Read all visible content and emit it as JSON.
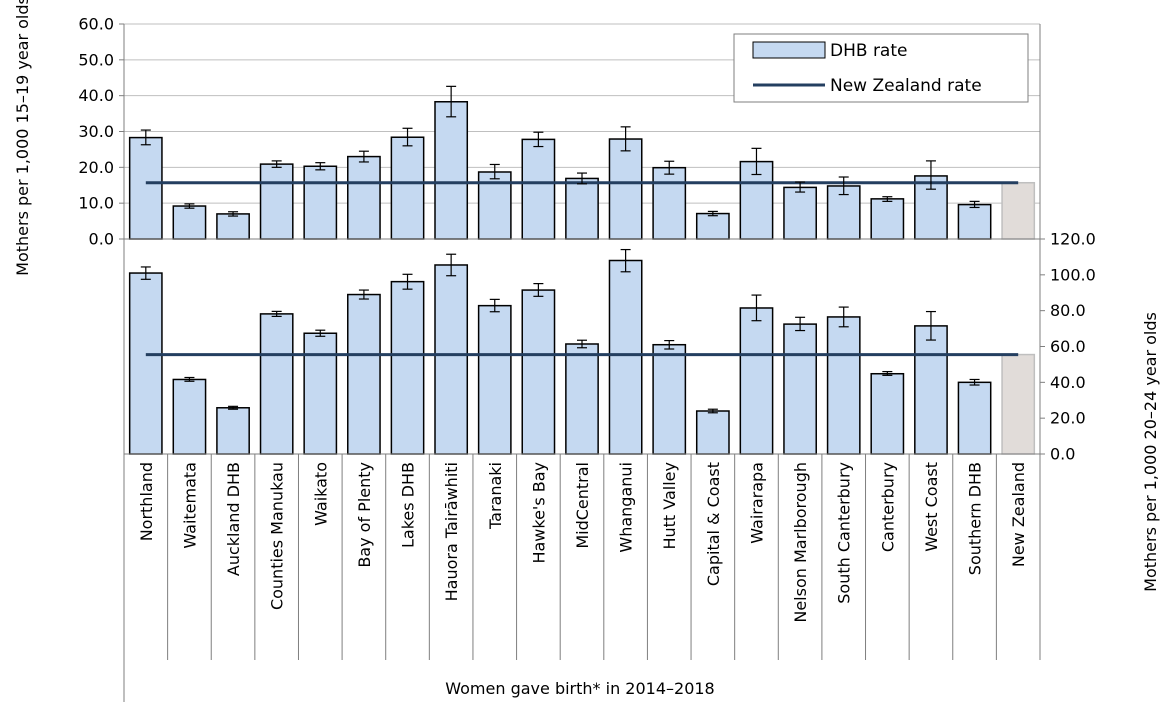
{
  "chart_data": {
    "type": "bar",
    "xlabel": "Women gave birth* in 2014–2018",
    "legend": {
      "position": "top-right",
      "entries": [
        "DHB rate",
        "New Zealand rate"
      ]
    },
    "categories": [
      "Northland",
      "Waitemata",
      "Auckland DHB",
      "Counties Manukau",
      "Waikato",
      "Bay of Plenty",
      "Lakes DHB",
      "Hauora Tairāwhiti",
      "Taranaki",
      "Hawke's Bay",
      "MidCentral",
      "Whanganui",
      "Hutt Valley",
      "Capital & Coast",
      "Wairarapa",
      "Nelson Marlborough",
      "South Canterbury",
      "Canterbury",
      "West Coast",
      "Southern DHB",
      "New Zealand"
    ],
    "colors": {
      "dhb_bar": "#c5d9f1",
      "nz_bar": "#e1dcd9",
      "bar_border": "#000000",
      "nz_line": "#243f60",
      "error_bar": "#000000",
      "grid": "#bfbfbf"
    },
    "panels": [
      {
        "id": "top",
        "ylabel": "Mothers per 1,000 15–19 year olds",
        "ylim": [
          0,
          60
        ],
        "yticks": [
          "0.0",
          "10.0",
          "20.0",
          "30.0",
          "40.0",
          "50.0",
          "60.0"
        ],
        "axis_side": "left",
        "nz_rate": 15.7,
        "values": [
          28.3,
          9.2,
          7.0,
          20.9,
          20.3,
          23.0,
          28.4,
          38.3,
          18.7,
          27.8,
          16.9,
          27.9,
          19.9,
          7.1,
          21.6,
          14.4,
          14.8,
          11.2,
          17.6,
          9.6,
          15.7
        ],
        "errors_low": [
          26.3,
          8.6,
          6.4,
          20.0,
          19.3,
          21.5,
          26.0,
          34.1,
          16.8,
          25.8,
          15.4,
          24.6,
          18.1,
          6.5,
          18.0,
          13.1,
          12.4,
          10.5,
          13.9,
          8.8,
          null
        ],
        "errors_high": [
          30.4,
          9.8,
          7.6,
          21.8,
          21.3,
          24.5,
          30.9,
          42.6,
          20.8,
          29.8,
          18.4,
          31.3,
          21.7,
          7.7,
          25.3,
          15.9,
          17.3,
          11.8,
          21.8,
          10.5,
          null
        ]
      },
      {
        "id": "bottom",
        "ylabel": "Mothers per 1,000 20–24 year olds",
        "ylim": [
          0,
          120
        ],
        "yticks": [
          "0.0",
          "20.0",
          "40.0",
          "60.0",
          "80.0",
          "100.0",
          "120.0"
        ],
        "axis_side": "right",
        "nz_rate": 55.5,
        "values": [
          101.0,
          41.6,
          25.8,
          78.2,
          67.4,
          89.0,
          96.2,
          105.5,
          82.8,
          91.5,
          61.4,
          108.0,
          61.0,
          24.0,
          81.5,
          72.5,
          76.5,
          44.8,
          71.5,
          40.0,
          55.5
        ],
        "errors_low": [
          97.5,
          40.6,
          25.0,
          76.8,
          65.7,
          86.5,
          92.0,
          99.5,
          79.4,
          88.0,
          59.3,
          101.7,
          58.6,
          23.0,
          74.4,
          68.9,
          71.0,
          43.9,
          63.6,
          38.5,
          null
        ],
        "errors_high": [
          104.4,
          42.7,
          26.6,
          79.6,
          69.1,
          91.5,
          100.3,
          111.5,
          86.3,
          95.1,
          63.5,
          114.1,
          63.3,
          25.0,
          88.7,
          76.3,
          82.0,
          46.0,
          79.5,
          41.6,
          null
        ]
      }
    ]
  }
}
